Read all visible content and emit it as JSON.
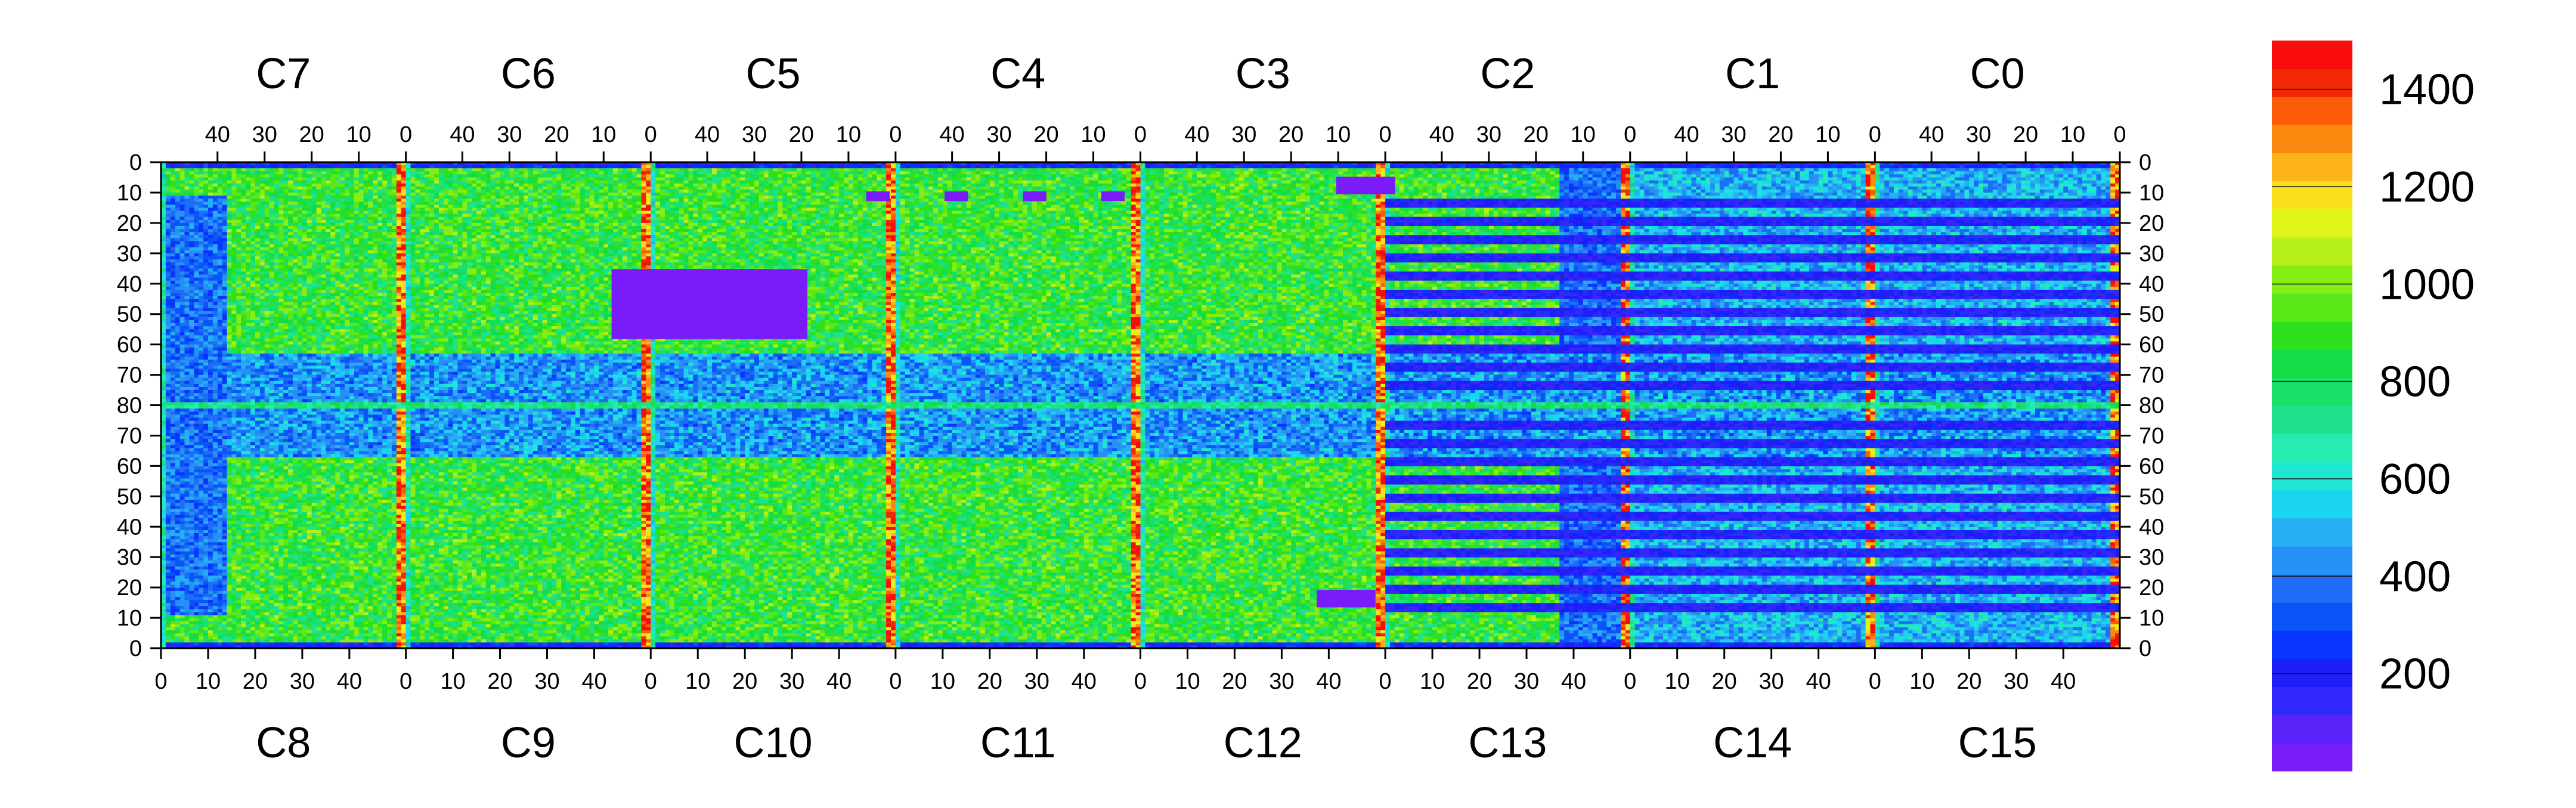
{
  "chart_data": {
    "type": "heatmap",
    "title": "",
    "xlabel": "",
    "ylabel": "",
    "top_chips": [
      "C7",
      "C6",
      "C5",
      "C4",
      "C3",
      "C2",
      "C1",
      "C0"
    ],
    "bottom_chips": [
      "C8",
      "C9",
      "C10",
      "C11",
      "C12",
      "C13",
      "C14",
      "C15"
    ],
    "chip_columns": 52,
    "rows_per_half": 80,
    "top_col_ticks": [
      "40",
      "30",
      "20",
      "10",
      "0"
    ],
    "bottom_col_ticks": [
      "0",
      "10",
      "20",
      "30",
      "40"
    ],
    "row_ticks": [
      "0",
      "10",
      "20",
      "30",
      "40",
      "50",
      "60",
      "70",
      "80",
      "70",
      "60",
      "50",
      "40",
      "30",
      "20",
      "10",
      "0"
    ],
    "colorbar": {
      "min": 0,
      "max": 1500,
      "ticks": [
        "200",
        "400",
        "600",
        "800",
        "1000",
        "1200",
        "1400"
      ],
      "tick_values": [
        200,
        400,
        600,
        800,
        1000,
        1200,
        1400
      ],
      "colors": [
        "#7a1cf8",
        "#5a24fa",
        "#3228fb",
        "#1e1ef6",
        "#0a34ff",
        "#0b55f8",
        "#1e6df8",
        "#2690f5",
        "#26aef5",
        "#1ad4f0",
        "#1ee6d2",
        "#26ecb0",
        "#1ee28c",
        "#18e06a",
        "#14dc46",
        "#2ee01e",
        "#5ae818",
        "#86ee14",
        "#b6f018",
        "#e0f41a",
        "#fae01a",
        "#fcb418",
        "#fc8a10",
        "#fc5c08",
        "#f02808",
        "#f80c0c"
      ]
    }
  }
}
